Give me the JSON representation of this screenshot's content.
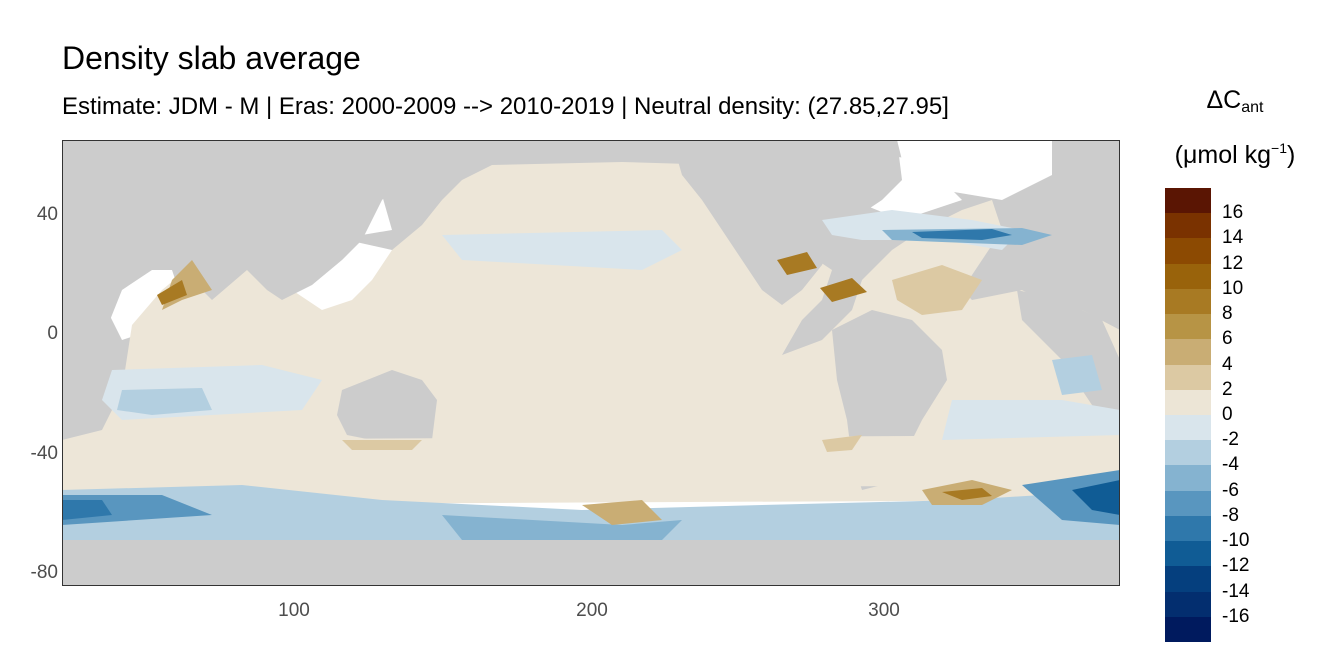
{
  "title": "Density slab average",
  "subtitle": "Estimate: JDM - M | Eras: 2000-2009 --> 2010-2019 | Neutral density: (27.85,27.95]",
  "legend": {
    "title_main": "ΔC",
    "title_sub": "ant",
    "unit_prefix": "(μmol kg",
    "unit_sup": "−1",
    "unit_suffix": ")",
    "colors": [
      "#5a1503",
      "#7a3200",
      "#8c4a02",
      "#99630b",
      "#a87a23",
      "#b79445",
      "#c9ad74",
      "#dcc9a3",
      "#ece5d6",
      "#d9e5ec",
      "#b3cfe0",
      "#85b3d0",
      "#5996bf",
      "#2f78ab",
      "#105c95",
      "#053f7e",
      "#032e6f",
      "#001a5e"
    ],
    "labels": [
      "16",
      "14",
      "12",
      "10",
      "8",
      "6",
      "4",
      "2",
      "0",
      "-2",
      "-4",
      "-6",
      "-8",
      "-10",
      "-12",
      "-14",
      "-16"
    ]
  },
  "map": {
    "land_color": "#cccccc",
    "ocean_base_color": "#ede6d8",
    "y_ticks": [
      "40",
      "0",
      "-40",
      "-80"
    ],
    "x_ticks": [
      "100",
      "200",
      "300"
    ]
  }
}
